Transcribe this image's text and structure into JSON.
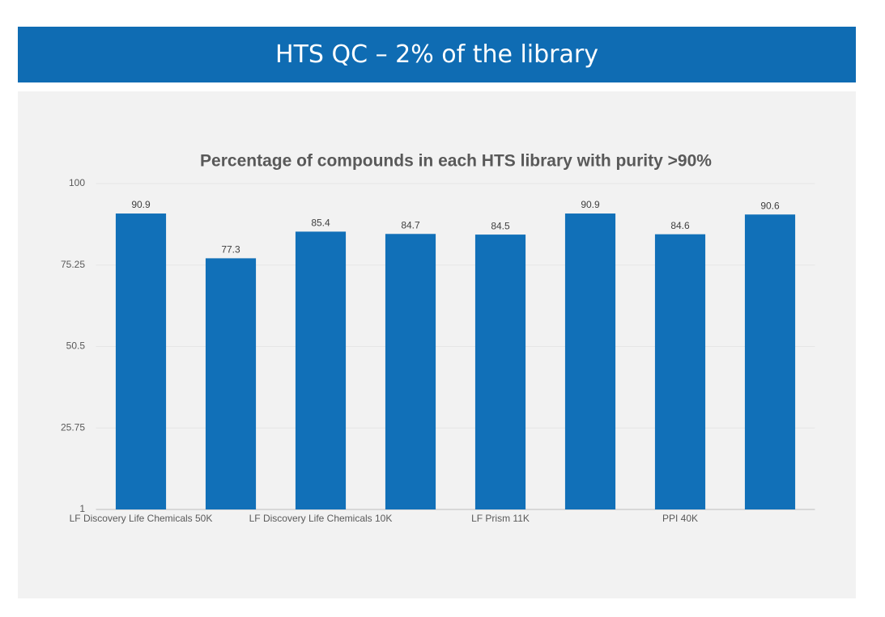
{
  "header": {
    "title": "HTS QC – 2% of the library"
  },
  "chart_data": {
    "type": "bar",
    "title": "Percentage of compounds in each HTS library with purity >90%",
    "categories": [
      "LF Discovery Life Chemicals 50K",
      null,
      "LF Discovery Life Chemicals 10K",
      null,
      "LF Prism 11K",
      null,
      "PPI 40K",
      null
    ],
    "values": [
      90.9,
      77.3,
      85.4,
      84.7,
      84.5,
      90.9,
      84.6,
      90.6
    ],
    "color": "#1170b8",
    "ylim": [
      1,
      100
    ],
    "yticks": [
      1,
      25.75,
      50.5,
      75.25,
      100
    ],
    "grid": true
  }
}
